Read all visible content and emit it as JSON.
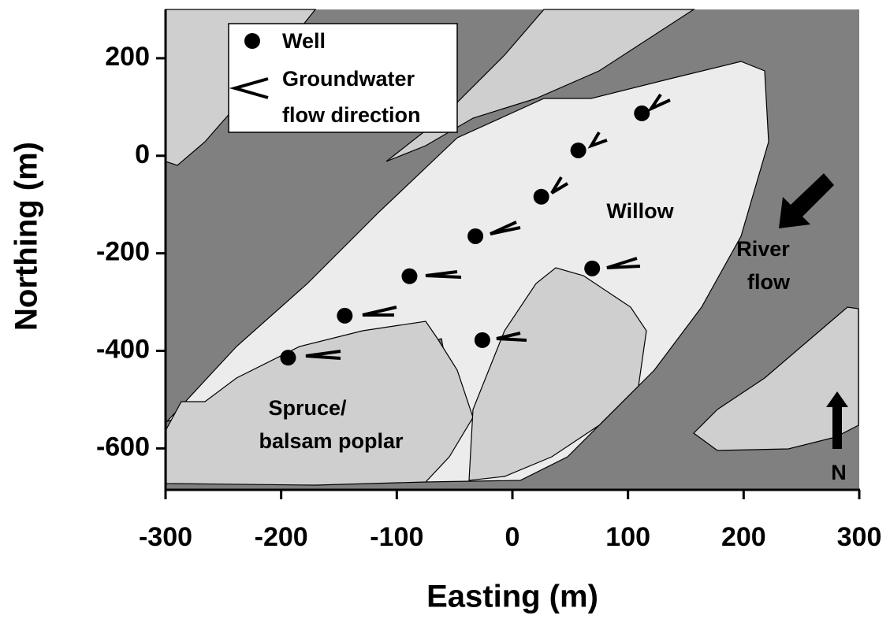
{
  "chart_data": {
    "type": "scatter",
    "xlabel": "Easting (m)",
    "ylabel": "Northing (m)",
    "xlim": [
      -300,
      300
    ],
    "xticks": [
      -300,
      -200,
      -100,
      0,
      100,
      200,
      300
    ],
    "ylim": [
      -685,
      300
    ],
    "yticks": [
      -600,
      -400,
      -200,
      0,
      200
    ],
    "series": [
      {
        "name": "Well",
        "color": "#000000",
        "x": [
          -194,
          -145,
          -89,
          -32,
          25,
          57,
          112,
          69,
          -26
        ],
        "values": [
          -414,
          -328,
          -247,
          -165,
          -84,
          11,
          87,
          -231,
          -378
        ]
      }
    ],
    "flow_legend": [
      "Groundwater",
      "flow direction"
    ],
    "willow_label": "Willow",
    "river_label": [
      "River",
      "flow"
    ],
    "spruce_label": [
      "Spruce/",
      "balsam poplar"
    ],
    "north_label": "N"
  }
}
